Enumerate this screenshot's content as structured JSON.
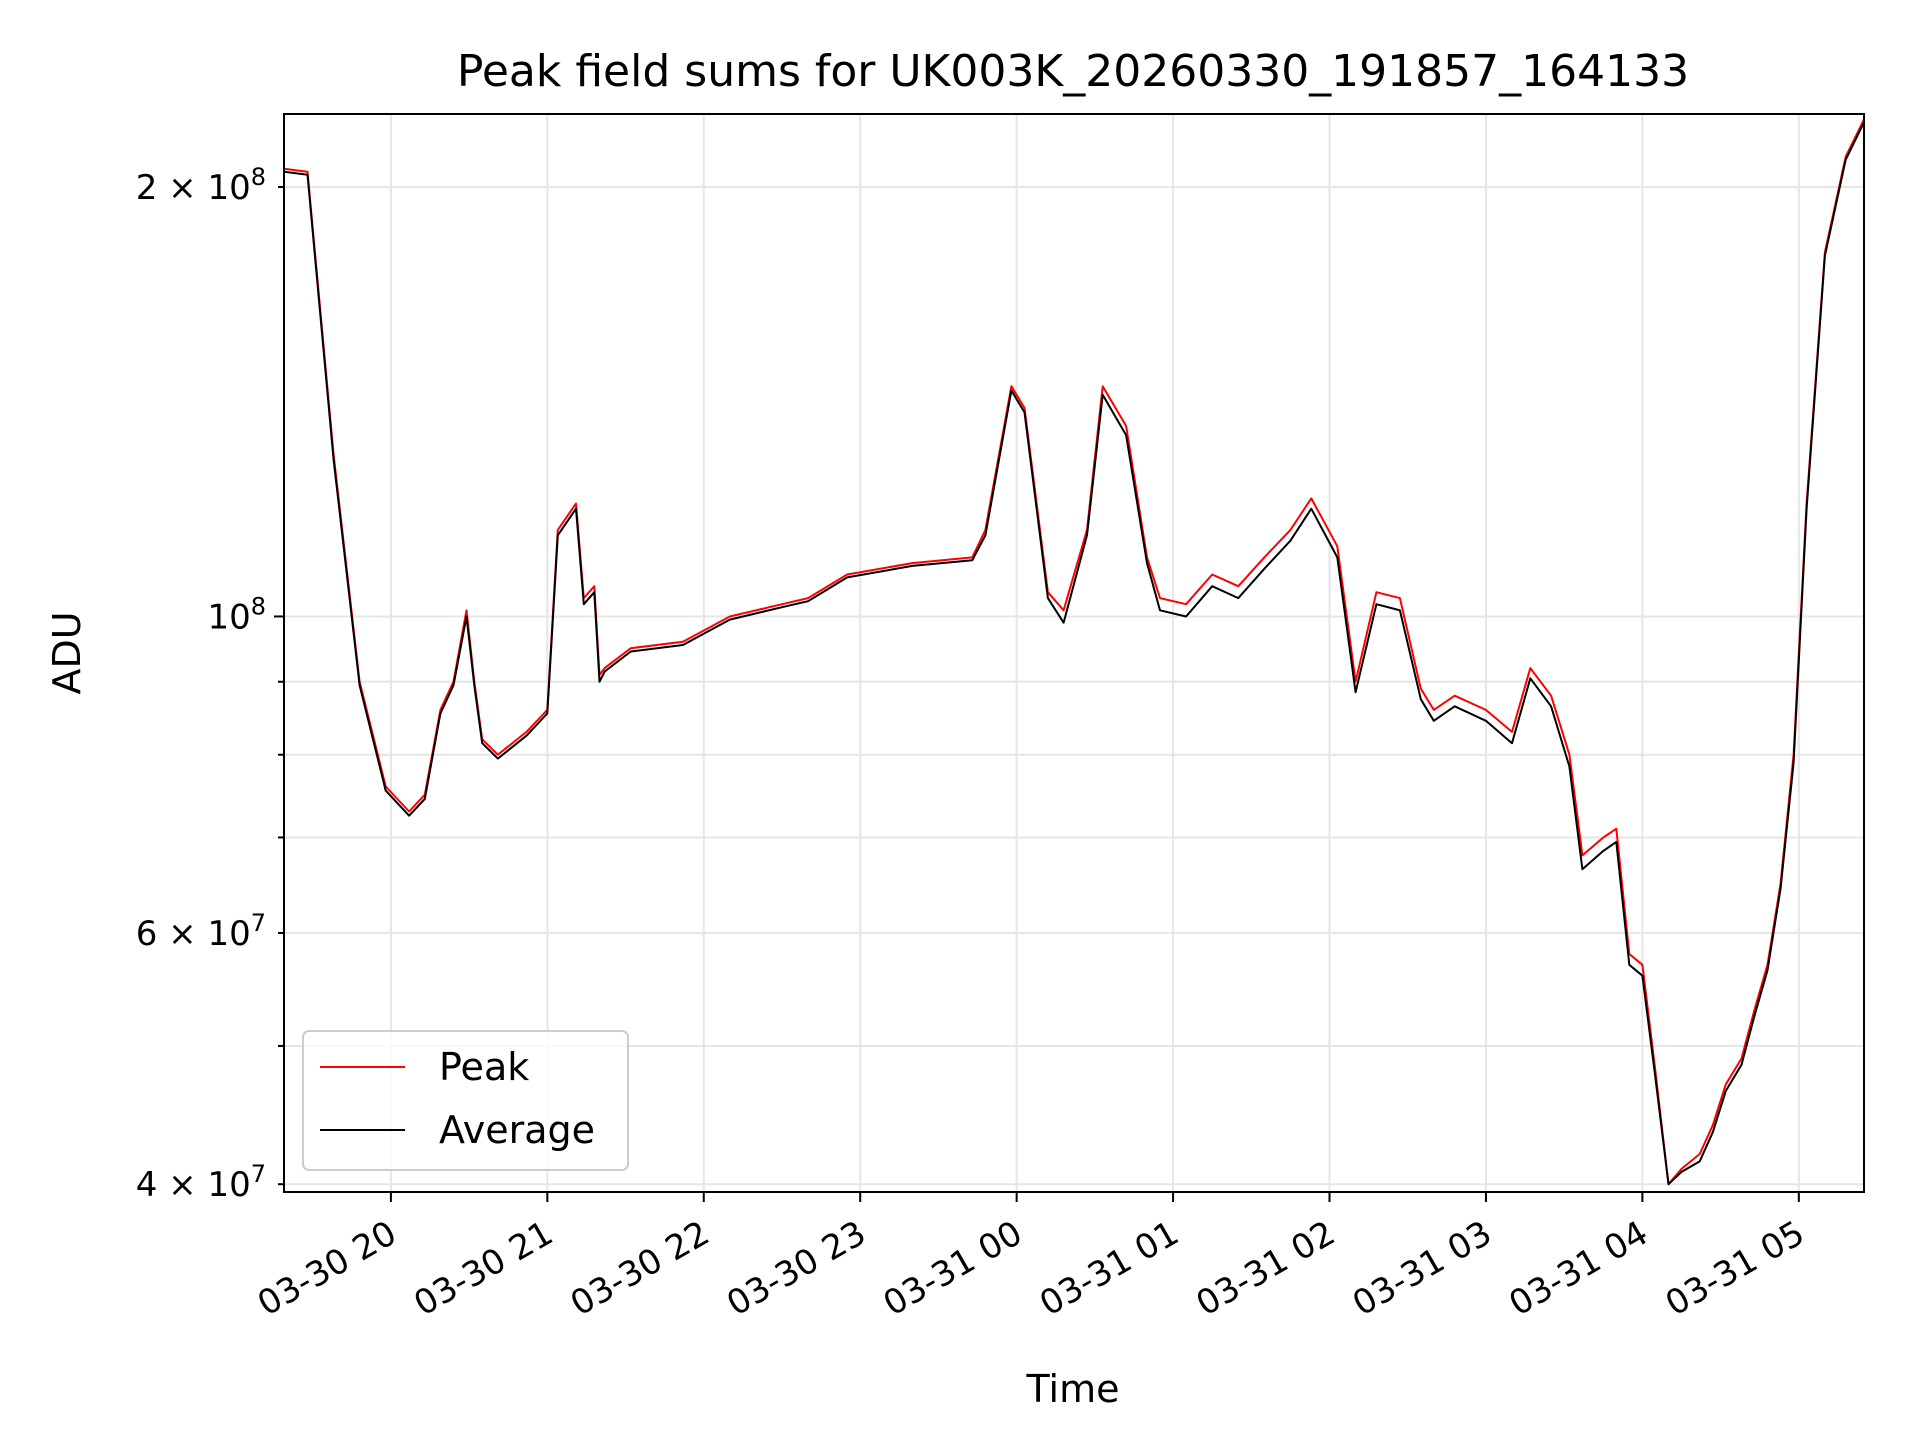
{
  "chart_data": {
    "type": "line",
    "title": "Peak field sums for UK003K_20260330_191857_164133",
    "xlabel": "Time",
    "ylabel": "ADU",
    "y_scale": "log",
    "ylim": [
      39500000,
      225000000
    ],
    "xlim": [
      "2026-03-30 19:19",
      "2026-03-31 05:25"
    ],
    "grid": true,
    "legend_position": "lower-left",
    "x_ticks": [
      "03-30 20",
      "03-30 21",
      "03-30 22",
      "03-30 23",
      "03-31 00",
      "03-31 01",
      "03-31 02",
      "03-31 03",
      "03-31 04",
      "03-31 05"
    ],
    "y_tick_labels": [
      {
        "value": 40000000,
        "mantissa": "4",
        "exponent": "7"
      },
      {
        "value": 60000000,
        "mantissa": "6",
        "exponent": "7"
      },
      {
        "value": 100000000,
        "mantissa": "",
        "exponent": "8"
      },
      {
        "value": 200000000,
        "mantissa": "2",
        "exponent": "8"
      }
    ],
    "series": [
      {
        "name": "Peak",
        "color": "#ff0000",
        "x": [
          "2026-03-30 19:19",
          "2026-03-30 19:28",
          "2026-03-30 19:38",
          "2026-03-30 19:48",
          "2026-03-30 19:58",
          "2026-03-30 20:07",
          "2026-03-30 20:13",
          "2026-03-30 20:19",
          "2026-03-30 20:24",
          "2026-03-30 20:29",
          "2026-03-30 20:32",
          "2026-03-30 20:35",
          "2026-03-30 20:41",
          "2026-03-30 20:52",
          "2026-03-30 21:00",
          "2026-03-30 21:04",
          "2026-03-30 21:11",
          "2026-03-30 21:14",
          "2026-03-30 21:18",
          "2026-03-30 21:20",
          "2026-03-30 21:22",
          "2026-03-30 21:32",
          "2026-03-30 21:52",
          "2026-03-30 22:10",
          "2026-03-30 22:30",
          "2026-03-30 22:40",
          "2026-03-30 22:55",
          "2026-03-30 23:20",
          "2026-03-30 23:43",
          "2026-03-30 23:48",
          "2026-03-30 23:58",
          "2026-03-31 00:03",
          "2026-03-31 00:12",
          "2026-03-31 00:18",
          "2026-03-31 00:27",
          "2026-03-31 00:33",
          "2026-03-31 00:42",
          "2026-03-31 00:50",
          "2026-03-31 00:55",
          "2026-03-31 01:05",
          "2026-03-31 01:15",
          "2026-03-31 01:25",
          "2026-03-31 01:35",
          "2026-03-31 01:45",
          "2026-03-31 01:53",
          "2026-03-31 02:03",
          "2026-03-31 02:10",
          "2026-03-31 02:18",
          "2026-03-31 02:27",
          "2026-03-31 02:35",
          "2026-03-31 02:40",
          "2026-03-31 02:48",
          "2026-03-31 03:00",
          "2026-03-31 03:10",
          "2026-03-31 03:17",
          "2026-03-31 03:25",
          "2026-03-31 03:32",
          "2026-03-31 03:37",
          "2026-03-31 03:45",
          "2026-03-31 03:50",
          "2026-03-31 03:55",
          "2026-03-31 04:00",
          "2026-03-31 04:05",
          "2026-03-31 04:10",
          "2026-03-31 04:15",
          "2026-03-31 04:22",
          "2026-03-31 04:27",
          "2026-03-31 04:32",
          "2026-03-31 04:38",
          "2026-03-31 04:43",
          "2026-03-31 04:48",
          "2026-03-31 04:53",
          "2026-03-31 04:58",
          "2026-03-31 05:03",
          "2026-03-31 05:10",
          "2026-03-31 05:18",
          "2026-03-31 05:25"
        ],
        "y": [
          206000000,
          205000000,
          130000000,
          90000000,
          76000000,
          73000000,
          75000000,
          86000000,
          90000000,
          101000000,
          90000000,
          82000000,
          80000000,
          83000000,
          86000000,
          115000000,
          120000000,
          103000000,
          105000000,
          91000000,
          92000000,
          95000000,
          96000000,
          100000000,
          102000000,
          103000000,
          107000000,
          109000000,
          110000000,
          115000000,
          145000000,
          140000000,
          104000000,
          101000000,
          115000000,
          145000000,
          136000000,
          110000000,
          103000000,
          102000000,
          107000000,
          105000000,
          110000000,
          115000000,
          121000000,
          112000000,
          90000000,
          104000000,
          103000000,
          89000000,
          86000000,
          88000000,
          86000000,
          83000000,
          92000000,
          88000000,
          80000000,
          68000000,
          70000000,
          71000000,
          58000000,
          57000000,
          48000000,
          40000000,
          41000000,
          42000000,
          44000000,
          47000000,
          49000000,
          53000000,
          57000000,
          65000000,
          80000000,
          120000000,
          180000000,
          210000000,
          223000000
        ]
      },
      {
        "name": "Average",
        "color": "#000000",
        "x": [
          "2026-03-30 19:19",
          "2026-03-30 19:28",
          "2026-03-30 19:38",
          "2026-03-30 19:48",
          "2026-03-30 19:58",
          "2026-03-30 20:07",
          "2026-03-30 20:13",
          "2026-03-30 20:19",
          "2026-03-30 20:24",
          "2026-03-30 20:29",
          "2026-03-30 20:32",
          "2026-03-30 20:35",
          "2026-03-30 20:41",
          "2026-03-30 20:52",
          "2026-03-30 21:00",
          "2026-03-30 21:04",
          "2026-03-30 21:11",
          "2026-03-30 21:14",
          "2026-03-30 21:18",
          "2026-03-30 21:20",
          "2026-03-30 21:22",
          "2026-03-30 21:32",
          "2026-03-30 21:52",
          "2026-03-30 22:10",
          "2026-03-30 22:30",
          "2026-03-30 22:40",
          "2026-03-30 22:55",
          "2026-03-30 23:20",
          "2026-03-30 23:43",
          "2026-03-30 23:48",
          "2026-03-30 23:58",
          "2026-03-31 00:03",
          "2026-03-31 00:12",
          "2026-03-31 00:18",
          "2026-03-31 00:27",
          "2026-03-31 00:33",
          "2026-03-31 00:42",
          "2026-03-31 00:50",
          "2026-03-31 00:55",
          "2026-03-31 01:05",
          "2026-03-31 01:15",
          "2026-03-31 01:25",
          "2026-03-31 01:35",
          "2026-03-31 01:45",
          "2026-03-31 01:53",
          "2026-03-31 02:03",
          "2026-03-31 02:10",
          "2026-03-31 02:18",
          "2026-03-31 02:27",
          "2026-03-31 02:35",
          "2026-03-31 02:40",
          "2026-03-31 02:48",
          "2026-03-31 03:00",
          "2026-03-31 03:10",
          "2026-03-31 03:17",
          "2026-03-31 03:25",
          "2026-03-31 03:32",
          "2026-03-31 03:37",
          "2026-03-31 03:45",
          "2026-03-31 03:50",
          "2026-03-31 03:55",
          "2026-03-31 04:00",
          "2026-03-31 04:05",
          "2026-03-31 04:10",
          "2026-03-31 04:15",
          "2026-03-31 04:22",
          "2026-03-31 04:27",
          "2026-03-31 04:32",
          "2026-03-31 04:38",
          "2026-03-31 04:43",
          "2026-03-31 04:48",
          "2026-03-31 04:53",
          "2026-03-31 04:58",
          "2026-03-31 05:03",
          "2026-03-31 05:10",
          "2026-03-31 05:18",
          "2026-03-31 05:25"
        ],
        "y": [
          205000000,
          204000000,
          129000000,
          89500000,
          75500000,
          72500000,
          74500000,
          85500000,
          89500000,
          100000000,
          89500000,
          81500000,
          79500000,
          82500000,
          85500000,
          114000000,
          119000000,
          102000000,
          104000000,
          90000000,
          91500000,
          94500000,
          95500000,
          99500000,
          101500000,
          102500000,
          106500000,
          108500000,
          109500000,
          114000000,
          144000000,
          139000000,
          103000000,
          99000000,
          114000000,
          143000000,
          134000000,
          109000000,
          101000000,
          100000000,
          105000000,
          103000000,
          108000000,
          113000000,
          119000000,
          110000000,
          88500000,
          102000000,
          101000000,
          87500000,
          84500000,
          86500000,
          84500000,
          81500000,
          90500000,
          86500000,
          78500000,
          66500000,
          68500000,
          69500000,
          57000000,
          56000000,
          47500000,
          40000000,
          40800000,
          41500000,
          43500000,
          46500000,
          48500000,
          52500000,
          56500000,
          64500000,
          79000000,
          119000000,
          179000000,
          209000000,
          222000000
        ]
      }
    ]
  }
}
